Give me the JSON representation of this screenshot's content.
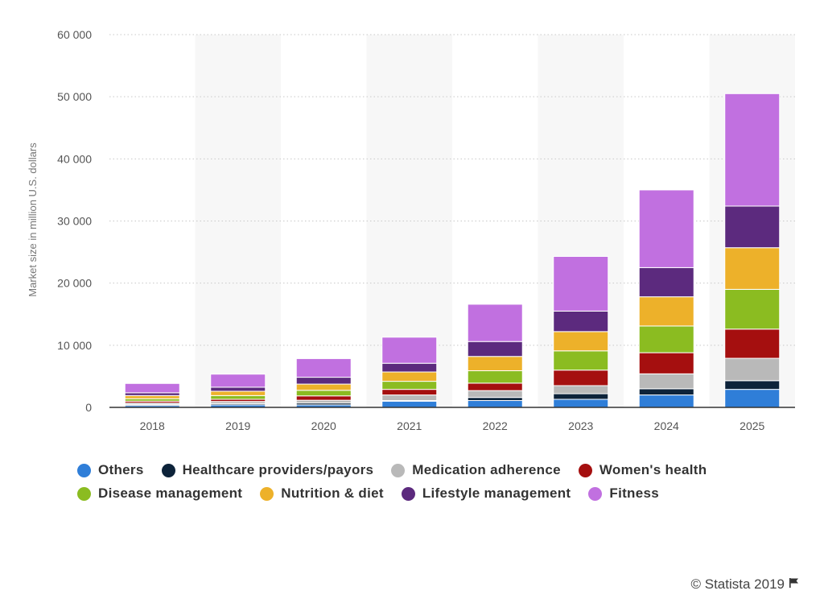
{
  "chart_data": {
    "type": "bar",
    "stacked": true,
    "categories": [
      "2018",
      "2019",
      "2020",
      "2021",
      "2022",
      "2023",
      "2024",
      "2025"
    ],
    "ylabel": "Market size in million U.S. dollars",
    "ylim": [
      0,
      60000
    ],
    "yticks": [
      0,
      10000,
      20000,
      30000,
      40000,
      50000,
      60000
    ],
    "ytick_labels": [
      "0",
      "10 000",
      "20 000",
      "30 000",
      "40 000",
      "50 000",
      "60 000"
    ],
    "grid": true,
    "legend_position": "bottom",
    "series": [
      {
        "name": "Others",
        "color": "#2f7ed8",
        "values": [
          300,
          400,
          400,
          1000,
          1100,
          1300,
          2000,
          2900
        ]
      },
      {
        "name": "Healthcare providers/payors",
        "color": "#0d233a",
        "values": [
          150,
          200,
          300,
          100,
          500,
          900,
          1000,
          1400
        ]
      },
      {
        "name": "Medication adherence",
        "color": "#b9b9b9",
        "values": [
          250,
          350,
          450,
          900,
          1100,
          1300,
          2400,
          3600
        ]
      },
      {
        "name": "Women's health",
        "color": "#a50f0f",
        "values": [
          300,
          350,
          700,
          900,
          1200,
          2500,
          3400,
          4700
        ]
      },
      {
        "name": "Disease management",
        "color": "#8bbc21",
        "values": [
          400,
          600,
          900,
          1300,
          2000,
          3100,
          4300,
          6400
        ]
      },
      {
        "name": "Nutrition & diet",
        "color": "#edb12a",
        "values": [
          500,
          700,
          1000,
          1500,
          2300,
          3100,
          4700,
          6700
        ]
      },
      {
        "name": "Lifestyle management",
        "color": "#5c2a7e",
        "values": [
          450,
          650,
          1100,
          1400,
          2400,
          3300,
          4700,
          6700
        ]
      },
      {
        "name": "Fitness",
        "color": "#c170e0",
        "values": [
          1500,
          2100,
          3000,
          4200,
          6000,
          8800,
          12500,
          18100
        ]
      }
    ]
  },
  "credit": {
    "text": "© Statista 2019",
    "icon": "flag-icon"
  }
}
